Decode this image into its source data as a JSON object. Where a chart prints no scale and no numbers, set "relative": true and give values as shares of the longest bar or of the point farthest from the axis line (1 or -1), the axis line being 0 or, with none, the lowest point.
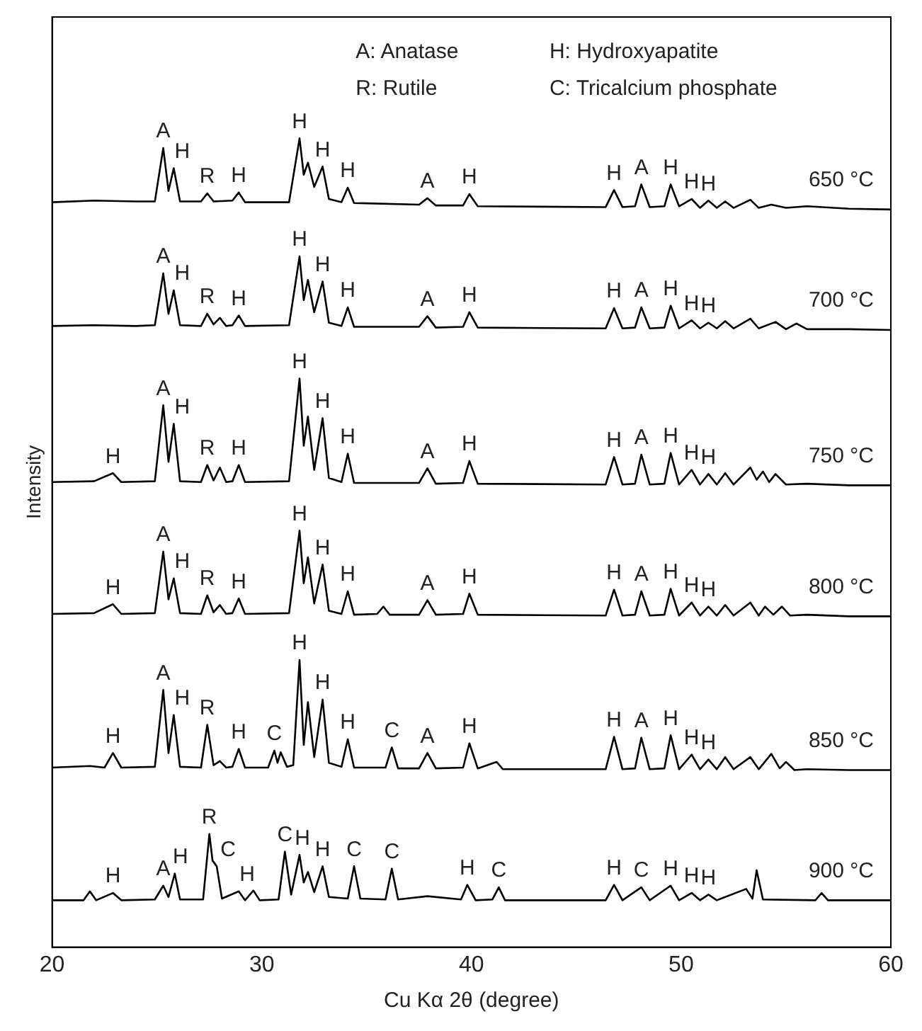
{
  "chart_data": {
    "type": "line",
    "relative": true,
    "xlabel": "Cu Kα 2θ (degree)",
    "ylabel": "Intensity",
    "xlim": [
      20,
      60
    ],
    "xticks": [
      20,
      30,
      40,
      50,
      60
    ],
    "legend": false,
    "series": [
      {
        "name": "650 °C",
        "color": "#000000",
        "x": [
          20,
          22,
          24,
          24.9,
          25.3,
          25.55,
          25.8,
          26.1,
          27.1,
          27.4,
          27.7,
          28.6,
          28.9,
          29.2,
          31.3,
          31.8,
          32.0,
          32.2,
          32.5,
          32.9,
          33.2,
          33.8,
          34.1,
          34.4,
          37.5,
          37.9,
          38.3,
          39.6,
          39.9,
          40.3,
          46.4,
          46.8,
          47.2,
          47.8,
          48.1,
          48.5,
          49.2,
          49.5,
          49.9,
          50.5,
          50.9,
          51.3,
          51.7,
          52.1,
          52.5,
          53.3,
          53.7,
          54.3,
          55,
          56,
          58,
          60
        ],
        "values": [
          0.921,
          0.923,
          0.922,
          0.922,
          0.988,
          0.935,
          0.963,
          0.922,
          0.922,
          0.932,
          0.922,
          0.923,
          0.933,
          0.921,
          0.921,
          1.0,
          0.955,
          0.97,
          0.94,
          0.965,
          0.925,
          0.921,
          0.939,
          0.92,
          0.918,
          0.926,
          0.917,
          0.917,
          0.931,
          0.916,
          0.915,
          0.936,
          0.915,
          0.916,
          0.943,
          0.915,
          0.916,
          0.943,
          0.916,
          0.925,
          0.914,
          0.923,
          0.914,
          0.922,
          0.914,
          0.924,
          0.914,
          0.918,
          0.914,
          0.916,
          0.913,
          0.912
        ]
      },
      {
        "name": "700 °C",
        "color": "#000000",
        "x": [
          20,
          22,
          24,
          24.9,
          25.3,
          25.55,
          25.8,
          26.1,
          27.1,
          27.4,
          27.7,
          28.0,
          28.3,
          28.6,
          28.9,
          29.2,
          31.3,
          31.8,
          32.0,
          32.2,
          32.5,
          32.9,
          33.2,
          33.8,
          34.1,
          34.4,
          37.5,
          37.9,
          38.3,
          39.6,
          39.9,
          40.3,
          46.4,
          46.8,
          47.2,
          47.8,
          48.1,
          48.5,
          49.2,
          49.5,
          49.9,
          50.5,
          50.9,
          51.3,
          51.7,
          52.1,
          52.5,
          53.3,
          53.7,
          54.5,
          55,
          55.5,
          56,
          58,
          60
        ],
        "values": [
          0.768,
          0.769,
          0.768,
          0.769,
          0.833,
          0.783,
          0.812,
          0.769,
          0.768,
          0.783,
          0.77,
          0.778,
          0.768,
          0.769,
          0.781,
          0.768,
          0.769,
          0.854,
          0.8,
          0.825,
          0.785,
          0.823,
          0.772,
          0.768,
          0.791,
          0.767,
          0.767,
          0.78,
          0.766,
          0.767,
          0.785,
          0.766,
          0.765,
          0.79,
          0.765,
          0.766,
          0.791,
          0.765,
          0.766,
          0.793,
          0.765,
          0.775,
          0.765,
          0.772,
          0.765,
          0.774,
          0.765,
          0.777,
          0.765,
          0.773,
          0.764,
          0.771,
          0.764,
          0.764,
          0.763
        ]
      },
      {
        "name": "750 °C",
        "color": "#000000",
        "x": [
          20,
          22,
          22.9,
          23.3,
          24.9,
          25.3,
          25.55,
          25.8,
          26.1,
          27.1,
          27.4,
          27.7,
          28.0,
          28.3,
          28.6,
          28.9,
          29.2,
          31.3,
          31.8,
          32.0,
          32.2,
          32.5,
          32.9,
          33.2,
          33.8,
          34.1,
          34.4,
          37.5,
          37.9,
          38.3,
          39.6,
          39.9,
          40.3,
          46.4,
          46.8,
          47.2,
          47.8,
          48.1,
          48.5,
          49.2,
          49.5,
          49.9,
          50.5,
          50.9,
          51.3,
          51.7,
          52.1,
          52.5,
          53.3,
          53.6,
          53.9,
          54.2,
          54.5,
          55,
          56,
          58,
          60
        ],
        "values": [
          0.575,
          0.576,
          0.586,
          0.575,
          0.576,
          0.67,
          0.6,
          0.647,
          0.576,
          0.575,
          0.596,
          0.577,
          0.593,
          0.575,
          0.576,
          0.596,
          0.575,
          0.576,
          0.703,
          0.62,
          0.656,
          0.59,
          0.654,
          0.58,
          0.575,
          0.61,
          0.574,
          0.574,
          0.592,
          0.573,
          0.574,
          0.601,
          0.573,
          0.572,
          0.606,
          0.572,
          0.573,
          0.609,
          0.572,
          0.573,
          0.611,
          0.572,
          0.59,
          0.572,
          0.585,
          0.572,
          0.586,
          0.572,
          0.593,
          0.578,
          0.588,
          0.575,
          0.585,
          0.572,
          0.573,
          0.571,
          0.571
        ]
      },
      {
        "name": "800 °C",
        "color": "#000000",
        "x": [
          20,
          22,
          22.9,
          23.3,
          24.9,
          25.3,
          25.55,
          25.8,
          26.1,
          27.1,
          27.4,
          27.7,
          28.0,
          28.3,
          28.6,
          28.9,
          29.2,
          31.3,
          31.8,
          32.0,
          32.2,
          32.5,
          32.9,
          33.2,
          33.8,
          34.1,
          34.4,
          35.5,
          35.8,
          36.1,
          37.5,
          37.9,
          38.3,
          39.6,
          39.9,
          40.3,
          46.4,
          46.8,
          47.2,
          47.8,
          48.1,
          48.5,
          49.2,
          49.5,
          49.9,
          50.5,
          50.9,
          51.3,
          51.7,
          52.1,
          52.5,
          53.3,
          53.7,
          54.0,
          54.4,
          54.8,
          55.2,
          56,
          58,
          60
        ],
        "values": [
          0.412,
          0.413,
          0.424,
          0.412,
          0.413,
          0.489,
          0.43,
          0.456,
          0.413,
          0.412,
          0.435,
          0.414,
          0.423,
          0.412,
          0.413,
          0.431,
          0.412,
          0.413,
          0.515,
          0.45,
          0.482,
          0.425,
          0.473,
          0.416,
          0.412,
          0.44,
          0.411,
          0.412,
          0.421,
          0.411,
          0.411,
          0.429,
          0.411,
          0.412,
          0.437,
          0.411,
          0.41,
          0.442,
          0.41,
          0.411,
          0.44,
          0.41,
          0.411,
          0.443,
          0.41,
          0.426,
          0.41,
          0.421,
          0.41,
          0.423,
          0.41,
          0.426,
          0.41,
          0.421,
          0.411,
          0.421,
          0.41,
          0.411,
          0.409,
          0.409
        ]
      },
      {
        "name": "850 °C",
        "color": "#000000",
        "x": [
          20,
          21.8,
          22.5,
          22.9,
          23.3,
          24.9,
          25.3,
          25.55,
          25.8,
          26.1,
          27.1,
          27.4,
          27.7,
          28.0,
          28.3,
          28.6,
          28.9,
          29.2,
          30.3,
          30.6,
          30.75,
          30.9,
          31.2,
          31.5,
          31.8,
          32.0,
          32.2,
          32.5,
          32.9,
          33.2,
          33.8,
          34.1,
          34.4,
          35.9,
          36.2,
          36.5,
          37.5,
          37.9,
          38.3,
          39.6,
          39.9,
          40.3,
          41.2,
          41.5,
          46.4,
          46.8,
          47.2,
          47.8,
          48.1,
          48.5,
          49.2,
          49.5,
          49.9,
          50.5,
          50.9,
          51.3,
          51.7,
          52.1,
          52.5,
          53.3,
          53.7,
          54.3,
          54.7,
          55.0,
          55.4,
          56,
          58,
          60
        ],
        "values": [
          0.222,
          0.224,
          0.222,
          0.24,
          0.222,
          0.223,
          0.318,
          0.24,
          0.287,
          0.223,
          0.222,
          0.275,
          0.225,
          0.23,
          0.222,
          0.223,
          0.245,
          0.222,
          0.222,
          0.243,
          0.228,
          0.241,
          0.223,
          0.225,
          0.355,
          0.25,
          0.303,
          0.235,
          0.306,
          0.228,
          0.223,
          0.257,
          0.222,
          0.222,
          0.247,
          0.221,
          0.221,
          0.24,
          0.221,
          0.222,
          0.252,
          0.221,
          0.229,
          0.22,
          0.22,
          0.26,
          0.22,
          0.221,
          0.259,
          0.22,
          0.221,
          0.262,
          0.22,
          0.238,
          0.22,
          0.232,
          0.22,
          0.235,
          0.22,
          0.235,
          0.22,
          0.239,
          0.221,
          0.229,
          0.219,
          0.22,
          0.219,
          0.219
        ]
      },
      {
        "name": "900 °C",
        "color": "#000000",
        "x": [
          20,
          21.5,
          21.8,
          22.1,
          22.9,
          23.3,
          24.9,
          25.3,
          25.55,
          25.85,
          26.1,
          27.2,
          27.5,
          27.65,
          27.85,
          28.1,
          28.9,
          29.2,
          29.6,
          29.9,
          30.8,
          31.1,
          31.4,
          31.8,
          32.0,
          32.2,
          32.5,
          32.9,
          33.2,
          34.1,
          34.4,
          34.7,
          35.9,
          36.2,
          36.5,
          37.9,
          39.5,
          39.8,
          40.2,
          41.0,
          41.3,
          41.6,
          46.4,
          46.8,
          47.2,
          48.1,
          48.5,
          49.5,
          49.9,
          50.5,
          50.9,
          51.3,
          51.7,
          53.1,
          53.4,
          53.6,
          53.9,
          56.4,
          56.7,
          57.0,
          58,
          60
        ],
        "values": [
          0.058,
          0.058,
          0.069,
          0.058,
          0.067,
          0.058,
          0.059,
          0.076,
          0.062,
          0.091,
          0.059,
          0.059,
          0.14,
          0.107,
          0.1,
          0.06,
          0.069,
          0.058,
          0.07,
          0.058,
          0.059,
          0.118,
          0.065,
          0.114,
          0.08,
          0.093,
          0.068,
          0.1,
          0.062,
          0.06,
          0.1,
          0.06,
          0.059,
          0.097,
          0.059,
          0.063,
          0.059,
          0.077,
          0.058,
          0.059,
          0.074,
          0.058,
          0.058,
          0.077,
          0.058,
          0.074,
          0.058,
          0.076,
          0.058,
          0.067,
          0.058,
          0.065,
          0.058,
          0.072,
          0.06,
          0.095,
          0.059,
          0.058,
          0.067,
          0.058,
          0.058,
          0.058
        ]
      }
    ],
    "annotations": [
      "A: Anatase",
      "H: Hydroxyapatite",
      "R: Rutile",
      "C: Tricalcium phosphate",
      {
        "text": "A",
        "x": 25.3,
        "y": 0.988
      },
      {
        "text": "H",
        "x": 25.8,
        "y": 0.963
      },
      {
        "text": "R",
        "x": 27.4,
        "y": 0.932
      },
      {
        "text": "H",
        "x": 28.9,
        "y": 0.933
      },
      {
        "text": "H",
        "x": 31.8,
        "y": 1.0
      },
      {
        "text": "H",
        "x": 32.9,
        "y": 0.965
      },
      {
        "text": "H",
        "x": 34.1,
        "y": 0.939
      },
      {
        "text": "A",
        "x": 37.9,
        "y": 0.926
      },
      {
        "text": "H",
        "x": 39.9,
        "y": 0.931
      },
      {
        "text": "H",
        "x": 46.8,
        "y": 0.936
      },
      {
        "text": "A",
        "x": 48.1,
        "y": 0.943
      },
      {
        "text": "H",
        "x": 49.5,
        "y": 0.943
      },
      {
        "text": "H",
        "x": 50.5,
        "y": 0.925
      },
      {
        "text": "H",
        "x": 51.3,
        "y": 0.923
      },
      {
        "text": "A",
        "x": 25.3,
        "y": 0.833
      },
      {
        "text": "H",
        "x": 25.8,
        "y": 0.812
      },
      {
        "text": "R",
        "x": 27.4,
        "y": 0.783
      },
      {
        "text": "H",
        "x": 28.9,
        "y": 0.781
      },
      {
        "text": "H",
        "x": 31.8,
        "y": 0.854
      },
      {
        "text": "H",
        "x": 32.9,
        "y": 0.823
      },
      {
        "text": "H",
        "x": 34.1,
        "y": 0.791
      },
      {
        "text": "A",
        "x": 37.9,
        "y": 0.78
      },
      {
        "text": "H",
        "x": 39.9,
        "y": 0.785
      },
      {
        "text": "H",
        "x": 46.8,
        "y": 0.79
      },
      {
        "text": "A",
        "x": 48.1,
        "y": 0.791
      },
      {
        "text": "H",
        "x": 49.5,
        "y": 0.793
      },
      {
        "text": "H",
        "x": 50.5,
        "y": 0.775
      },
      {
        "text": "H",
        "x": 51.3,
        "y": 0.772
      },
      {
        "text": "H",
        "x": 22.9,
        "y": 0.586
      },
      {
        "text": "A",
        "x": 25.3,
        "y": 0.67
      },
      {
        "text": "H",
        "x": 25.8,
        "y": 0.647
      },
      {
        "text": "R",
        "x": 27.4,
        "y": 0.596
      },
      {
        "text": "H",
        "x": 28.9,
        "y": 0.596
      },
      {
        "text": "H",
        "x": 31.8,
        "y": 0.703
      },
      {
        "text": "H",
        "x": 32.9,
        "y": 0.654
      },
      {
        "text": "H",
        "x": 34.1,
        "y": 0.61
      },
      {
        "text": "A",
        "x": 37.9,
        "y": 0.592
      },
      {
        "text": "H",
        "x": 39.9,
        "y": 0.601
      },
      {
        "text": "H",
        "x": 46.8,
        "y": 0.606
      },
      {
        "text": "A",
        "x": 48.1,
        "y": 0.609
      },
      {
        "text": "H",
        "x": 49.5,
        "y": 0.611
      },
      {
        "text": "H",
        "x": 50.5,
        "y": 0.59
      },
      {
        "text": "H",
        "x": 51.3,
        "y": 0.585
      },
      {
        "text": "H",
        "x": 22.9,
        "y": 0.424
      },
      {
        "text": "A",
        "x": 25.3,
        "y": 0.489
      },
      {
        "text": "H",
        "x": 25.8,
        "y": 0.456
      },
      {
        "text": "R",
        "x": 27.4,
        "y": 0.435
      },
      {
        "text": "H",
        "x": 28.9,
        "y": 0.431
      },
      {
        "text": "H",
        "x": 31.8,
        "y": 0.515
      },
      {
        "text": "H",
        "x": 32.9,
        "y": 0.473
      },
      {
        "text": "H",
        "x": 34.1,
        "y": 0.44
      },
      {
        "text": "A",
        "x": 37.9,
        "y": 0.429
      },
      {
        "text": "H",
        "x": 39.9,
        "y": 0.437
      },
      {
        "text": "H",
        "x": 46.8,
        "y": 0.442
      },
      {
        "text": "A",
        "x": 48.1,
        "y": 0.44
      },
      {
        "text": "H",
        "x": 49.5,
        "y": 0.443
      },
      {
        "text": "H",
        "x": 50.5,
        "y": 0.426
      },
      {
        "text": "H",
        "x": 51.3,
        "y": 0.421
      },
      {
        "text": "H",
        "x": 22.9,
        "y": 0.24
      },
      {
        "text": "A",
        "x": 25.3,
        "y": 0.318
      },
      {
        "text": "H",
        "x": 25.8,
        "y": 0.287
      },
      {
        "text": "R",
        "x": 27.4,
        "y": 0.275
      },
      {
        "text": "H",
        "x": 28.9,
        "y": 0.245
      },
      {
        "text": "C",
        "x": 30.6,
        "y": 0.243
      },
      {
        "text": "H",
        "x": 31.8,
        "y": 0.355
      },
      {
        "text": "H",
        "x": 32.9,
        "y": 0.306
      },
      {
        "text": "H",
        "x": 34.1,
        "y": 0.257
      },
      {
        "text": "C",
        "x": 36.2,
        "y": 0.247
      },
      {
        "text": "A",
        "x": 37.9,
        "y": 0.24
      },
      {
        "text": "H",
        "x": 39.9,
        "y": 0.252
      },
      {
        "text": "H",
        "x": 46.8,
        "y": 0.26
      },
      {
        "text": "A",
        "x": 48.1,
        "y": 0.259
      },
      {
        "text": "H",
        "x": 49.5,
        "y": 0.262
      },
      {
        "text": "H",
        "x": 50.5,
        "y": 0.238
      },
      {
        "text": "H",
        "x": 51.3,
        "y": 0.232
      },
      {
        "text": "H",
        "x": 22.9,
        "y": 0.067
      },
      {
        "text": "A",
        "x": 25.3,
        "y": 0.076
      },
      {
        "text": "H",
        "x": 25.85,
        "y": 0.091
      },
      {
        "text": "R",
        "x": 27.5,
        "y": 0.14
      },
      {
        "text": "C",
        "x": 27.85,
        "y": 0.1
      },
      {
        "text": "H",
        "x": 28.9,
        "y": 0.069
      },
      {
        "text": "C",
        "x": 31.1,
        "y": 0.118
      },
      {
        "text": "H",
        "x": 31.8,
        "y": 0.114
      },
      {
        "text": "H",
        "x": 32.9,
        "y": 0.1
      },
      {
        "text": "C",
        "x": 34.4,
        "y": 0.1
      },
      {
        "text": "C",
        "x": 36.2,
        "y": 0.097
      },
      {
        "text": "H",
        "x": 39.8,
        "y": 0.077
      },
      {
        "text": "C",
        "x": 41.3,
        "y": 0.074
      },
      {
        "text": "H",
        "x": 46.8,
        "y": 0.077
      },
      {
        "text": "C",
        "x": 48.1,
        "y": 0.074
      },
      {
        "text": "H",
        "x": 49.5,
        "y": 0.076
      },
      {
        "text": "H",
        "x": 50.5,
        "y": 0.067
      },
      {
        "text": "H",
        "x": 51.3,
        "y": 0.065
      }
    ]
  }
}
